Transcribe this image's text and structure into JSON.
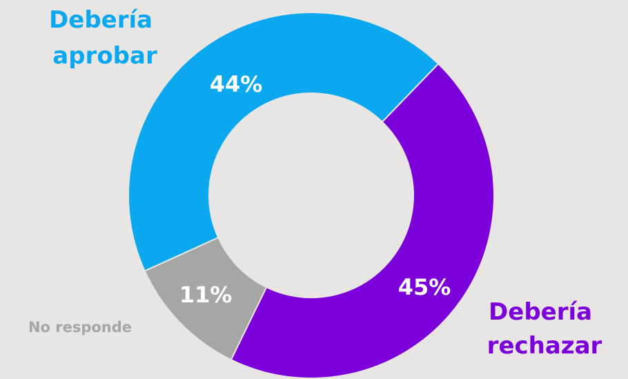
{
  "chart_data": {
    "type": "pie",
    "donut": true,
    "legend": "none",
    "slices": [
      {
        "label_lines": [
          "Debería",
          "aprobar"
        ],
        "value": 44,
        "value_label": "44%",
        "color": "#0ca8ef",
        "label_color": "#0ca8ef"
      },
      {
        "label_lines": [
          "Debería",
          "rechazar"
        ],
        "value": 45,
        "value_label": "45%",
        "color": "#7b00d9",
        "label_color": "#7b00d9"
      },
      {
        "label_lines": [
          "No responde"
        ],
        "value": 11,
        "value_label": "11%",
        "color": "#a6a6a6",
        "label_color": "#a6a6a6"
      }
    ]
  }
}
